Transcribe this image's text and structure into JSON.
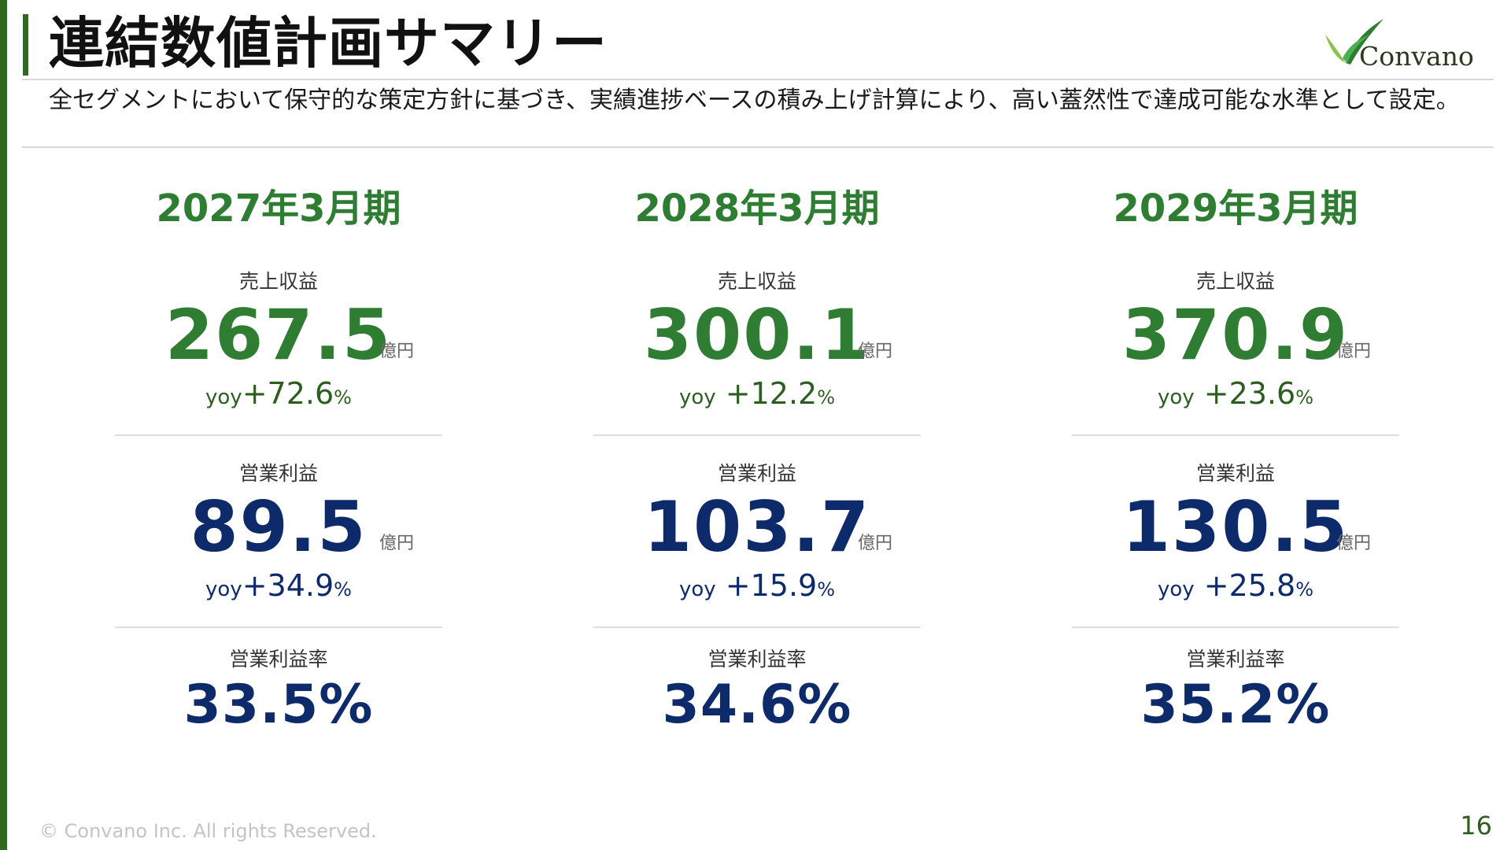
{
  "title": "連結数値計画サマリー",
  "subtitle": "全セグメントにおいて保守的な策定方針に基づき、実績進捗ベースの積み上げ計算により、高い蓋然性で達成可能な水準として設定。",
  "logo": {
    "text": "Convano",
    "colors": {
      "leaf_light": "#8bc34a",
      "leaf_dark": "#2e7d32"
    }
  },
  "labels": {
    "revenue": "売上収益",
    "operating_profit": "営業利益",
    "operating_margin": "営業利益率",
    "unit": "億円",
    "yoy": "yoy",
    "percent": "%"
  },
  "periods": [
    {
      "year": "2027年3月期",
      "revenue": {
        "value": "267.5",
        "yoy": "+72.6"
      },
      "operating_profit": {
        "value": "89.5",
        "yoy": "+34.9"
      },
      "operating_margin": "33.5%"
    },
    {
      "year": "2028年3月期",
      "revenue": {
        "value": "300.1",
        "yoy": "+12.2"
      },
      "operating_profit": {
        "value": "103.7",
        "yoy": "+15.9"
      },
      "operating_margin": "34.6%"
    },
    {
      "year": "2029年3月期",
      "revenue": {
        "value": "370.9",
        "yoy": "+23.6"
      },
      "operating_profit": {
        "value": "130.5",
        "yoy": "+25.8"
      },
      "operating_margin": "35.2%"
    }
  ],
  "footer": {
    "copyright": "© Convano Inc. All rights Reserved.",
    "page_number": "16"
  },
  "colors": {
    "accent_green": "#2e7d32",
    "navy": "#0d2a6b",
    "bar_green": "#2d6a1e"
  }
}
